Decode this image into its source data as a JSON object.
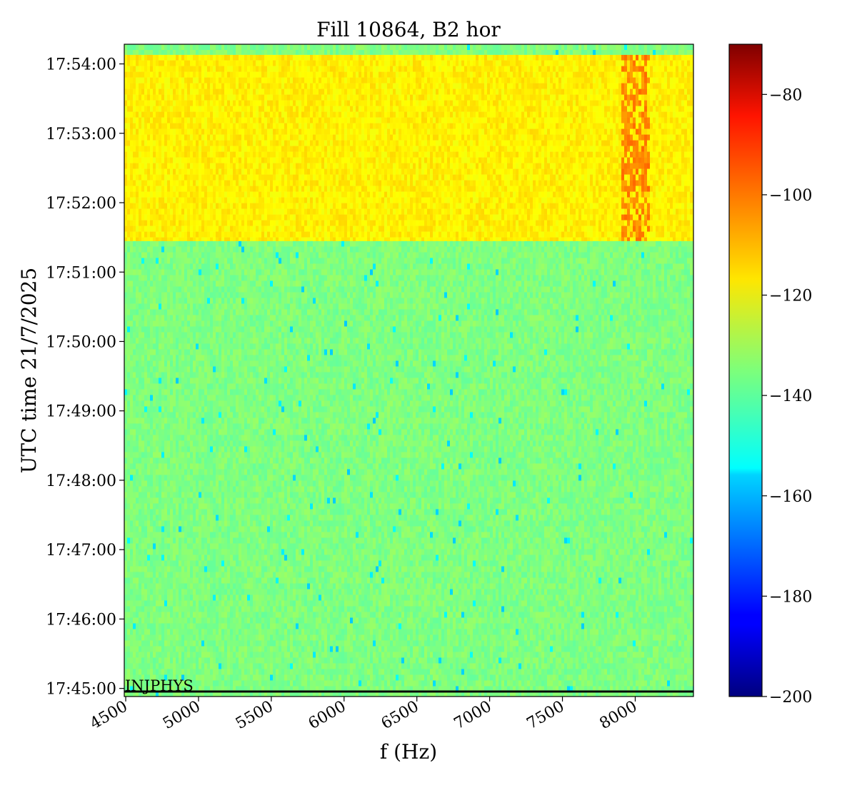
{
  "chart_data": {
    "type": "heatmap",
    "title": "Fill 10864, B2 hor",
    "xlabel": "f (Hz)",
    "ylabel": "UTC time 21/7/2025",
    "xlim": [
      4490,
      8400
    ],
    "x_ticks": [
      4500,
      5000,
      5500,
      6000,
      6500,
      7000,
      7500,
      8000
    ],
    "y_ticks": [
      "17:45:00",
      "17:46:00",
      "17:47:00",
      "17:48:00",
      "17:49:00",
      "17:50:00",
      "17:51:00",
      "17:52:00",
      "17:53:00",
      "17:54:00"
    ],
    "ylim": [
      "17:44:53",
      "17:54:17"
    ],
    "colormap": "jet",
    "colorbar": {
      "range": [
        -200,
        -70
      ],
      "ticks": [
        -80,
        -100,
        -120,
        -140,
        -160,
        -180,
        -200
      ]
    },
    "regions": [
      {
        "from": "17:44:53",
        "to": "17:51:27",
        "typical_value": -135
      },
      {
        "from": "17:51:27",
        "to": "17:54:08",
        "typical_value": -117
      },
      {
        "from": "17:54:08",
        "to": "17:54:17",
        "typical_value": -135
      }
    ],
    "features": [
      {
        "x_range": [
          7900,
          8100
        ],
        "time_range": [
          "17:51:27",
          "17:54:08"
        ],
        "typical_value": -103
      }
    ],
    "annotations": [
      {
        "text": "INJPHYS",
        "time": "17:44:53"
      }
    ]
  }
}
